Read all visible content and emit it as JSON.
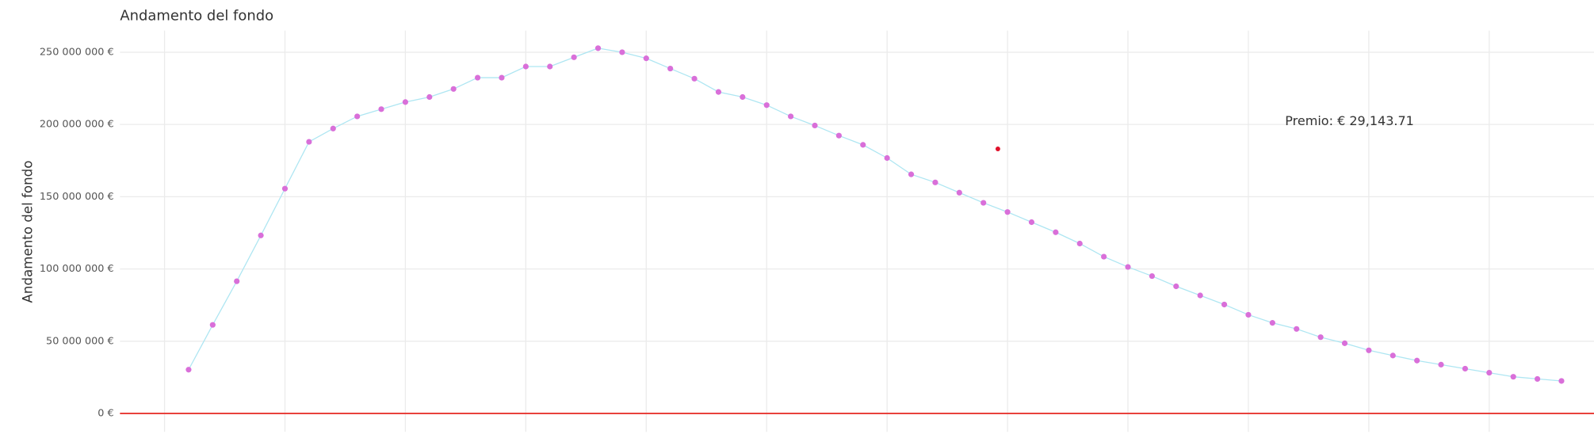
{
  "chart_data": {
    "type": "line",
    "title": "Andamento del fondo",
    "y_label": "Andamento del fondo",
    "x": [
      1,
      2,
      3,
      4,
      5,
      6,
      7,
      8,
      9,
      10,
      11,
      12,
      13,
      14,
      15,
      16,
      17,
      18,
      19,
      20,
      21,
      22,
      23,
      24,
      25,
      26,
      27,
      28,
      29,
      30,
      31,
      32,
      33,
      34,
      35,
      36,
      37,
      38,
      39,
      40,
      41,
      42,
      43,
      44,
      45,
      46,
      47,
      48,
      49,
      50,
      51,
      52,
      53,
      54,
      55,
      56,
      57,
      58
    ],
    "series": [
      {
        "name": "Andamento del fondo",
        "color": "#aee6f2",
        "marker_color": "#d96fd9",
        "values": [
          30300000,
          61300000,
          91500000,
          123200000,
          155600000,
          188000000,
          197200000,
          205600000,
          210600000,
          215500000,
          219000000,
          224600000,
          232400000,
          232400000,
          240100000,
          240100000,
          246500000,
          252800000,
          250000000,
          245800000,
          238700000,
          231700000,
          222500000,
          219000000,
          213400000,
          205600000,
          199300000,
          192300000,
          185900000,
          176800000,
          165500000,
          159900000,
          152800000,
          145800000,
          139400000,
          132400000,
          125400000,
          117600000,
          108500000,
          101400000,
          95100000,
          88000000,
          81700000,
          75400000,
          68300000,
          62700000,
          58500000,
          52800000,
          48600000,
          43700000,
          40100000,
          36600000,
          33800000,
          31000000,
          28200000,
          25400000,
          23900000,
          22500000
        ]
      }
    ],
    "highlight": {
      "x": 34.6,
      "y": 183100000,
      "color": "#e0102a"
    },
    "hline": {
      "y": 0,
      "color": "#e8413c"
    },
    "annotation": {
      "text": "Premio: € 29,143.71",
      "x": 49.2,
      "y": 202000000
    },
    "xlim": [
      -1.85,
      59.35
    ],
    "ylim": [
      -12700000,
      265000000
    ],
    "xticks": [
      0,
      5,
      10,
      15,
      20,
      25,
      30,
      35,
      40,
      45,
      50,
      55
    ],
    "yticks": [
      {
        "value": 0,
        "label": "0 €"
      },
      {
        "value": 50000000,
        "label": "50 000 000 €"
      },
      {
        "value": 100000000,
        "label": "100 000 000 €"
      },
      {
        "value": 150000000,
        "label": "150 000 000 €"
      },
      {
        "value": 200000000,
        "label": "200 000 000 €"
      },
      {
        "value": 250000000,
        "label": "250 000 000 €"
      }
    ],
    "grid": true
  }
}
